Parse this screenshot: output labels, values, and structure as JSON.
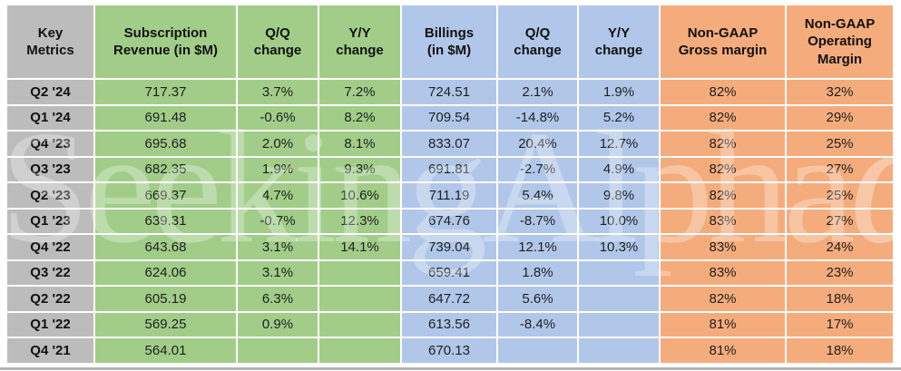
{
  "colors": {
    "gray": "#BCBCBC",
    "green": "#A1CD89",
    "blue": "#B1C7E9",
    "orange": "#F5AC7C",
    "gridline": "#FFFFFF",
    "text": "#1A1A1A"
  },
  "watermark": {
    "text": "SeekingAlpha",
    "alpha_symbol": "α"
  },
  "presentation": {
    "headers": [
      {
        "key": "key-metrics",
        "group": "gray",
        "label": "Key\nMetrics"
      },
      {
        "key": "subscription-revenue",
        "group": "green",
        "label": "Subscription\nRevenue (in $M)"
      },
      {
        "key": "subscription-qq-change",
        "group": "green",
        "label": "Q/Q\nchange"
      },
      {
        "key": "subscription-yy-change",
        "group": "green",
        "label": "Y/Y\nchange"
      },
      {
        "key": "billings",
        "group": "blue",
        "label": "Billings\n(in $M)"
      },
      {
        "key": "billings-qq-change",
        "group": "blue",
        "label": "Q/Q\nchange"
      },
      {
        "key": "billings-yy-change",
        "group": "blue",
        "label": "Y/Y\nchange"
      },
      {
        "key": "non-gaap-gross-margin",
        "group": "orange",
        "label": "Non-GAAP\nGross margin"
      },
      {
        "key": "non-gaap-operating-margin",
        "group": "orange",
        "label": "Non-GAAP\nOperating\nMargin",
        "tall": true
      }
    ]
  },
  "chart_data": {
    "type": "table",
    "title": "Key Metrics",
    "columns": [
      "Key Metrics",
      "Subscription Revenue (in $M)",
      "Q/Q change",
      "Y/Y change",
      "Billings (in $M)",
      "Q/Q change",
      "Y/Y change",
      "Non-GAAP Gross margin",
      "Non-GAAP Operating Margin"
    ],
    "rows": [
      [
        "Q2 '24",
        "717.37",
        "3.7%",
        "7.2%",
        "724.51",
        "2.1%",
        "1.9%",
        "82%",
        "32%"
      ],
      [
        "Q1 '24",
        "691.48",
        "-0.6%",
        "8.2%",
        "709.54",
        "-14.8%",
        "5.2%",
        "82%",
        "29%"
      ],
      [
        "Q4 '23",
        "695.68",
        "2.0%",
        "8.1%",
        "833.07",
        "20.4%",
        "12.7%",
        "82%",
        "25%"
      ],
      [
        "Q3 '23",
        "682.35",
        "1.9%",
        "9.3%",
        "691.81",
        "-2.7%",
        "4.9%",
        "82%",
        "27%"
      ],
      [
        "Q2 '23",
        "669.37",
        "4.7%",
        "10.6%",
        "711.19",
        "5.4%",
        "9.8%",
        "82%",
        "25%"
      ],
      [
        "Q1 '23",
        "639.31",
        "-0.7%",
        "12.3%",
        "674.76",
        "-8.7%",
        "10.0%",
        "83%",
        "27%"
      ],
      [
        "Q4 '22",
        "643.68",
        "3.1%",
        "14.1%",
        "739.04",
        "12.1%",
        "10.3%",
        "83%",
        "24%"
      ],
      [
        "Q3 '22",
        "624.06",
        "3.1%",
        "",
        "659.41",
        "1.8%",
        "",
        "83%",
        "23%"
      ],
      [
        "Q2 '22",
        "605.19",
        "6.3%",
        "",
        "647.72",
        "5.6%",
        "",
        "82%",
        "18%"
      ],
      [
        "Q1 '22",
        "569.25",
        "0.9%",
        "",
        "613.56",
        "-8.4%",
        "",
        "81%",
        "17%"
      ],
      [
        "Q4 '21",
        "564.01",
        "",
        "",
        "670.13",
        "",
        "",
        "81%",
        "18%"
      ]
    ]
  }
}
